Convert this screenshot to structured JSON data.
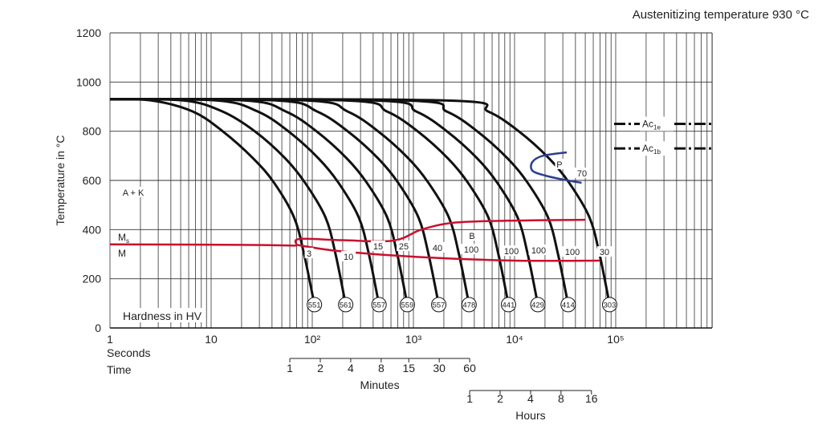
{
  "chart_data": {
    "type": "line",
    "title": "Austenitizing temperature 930 °C",
    "ylabel": "Temperature in °C",
    "xlabel_rows": [
      "Seconds",
      "Time"
    ],
    "x_scale": "log",
    "xlim": [
      1,
      900000
    ],
    "ylim": [
      0,
      1200
    ],
    "grid": true,
    "y_ticks": [
      0,
      200,
      400,
      600,
      800,
      1000,
      1200
    ],
    "x_ticks": [
      {
        "value": 1,
        "label": "1"
      },
      {
        "value": 10,
        "label": "10"
      },
      {
        "value": 100,
        "label": "10²"
      },
      {
        "value": 1000,
        "label": "10³"
      },
      {
        "value": 10000,
        "label": "10⁴"
      },
      {
        "value": 100000,
        "label": "10⁵"
      }
    ],
    "minutes_axis": {
      "label": "Minutes",
      "ticks": [
        1,
        2,
        4,
        8,
        15,
        30,
        60
      ]
    },
    "hours_axis": {
      "label": "Hours",
      "ticks": [
        1,
        2,
        4,
        8,
        16
      ]
    },
    "cooling_curves": [
      {
        "hardness": "551",
        "points": [
          [
            1,
            930
          ],
          [
            2.6,
            925
          ],
          [
            6.6,
            880
          ],
          [
            13,
            800
          ],
          [
            26,
            690
          ],
          [
            42,
            590
          ],
          [
            66,
            450
          ],
          [
            83,
            300
          ],
          [
            105,
            95
          ]
        ]
      },
      {
        "hardness": "561",
        "points": [
          [
            1,
            930
          ],
          [
            5.4,
            925
          ],
          [
            13,
            880
          ],
          [
            27,
            800
          ],
          [
            54,
            690
          ],
          [
            85,
            590
          ],
          [
            135,
            450
          ],
          [
            170,
            300
          ],
          [
            214,
            95
          ]
        ]
      },
      {
        "hardness": "557",
        "points": [
          [
            1,
            930
          ],
          [
            11.5,
            925
          ],
          [
            29,
            880
          ],
          [
            58,
            800
          ],
          [
            115,
            690
          ],
          [
            182,
            590
          ],
          [
            288,
            450
          ],
          [
            363,
            300
          ],
          [
            457,
            95
          ]
        ]
      },
      {
        "hardness": "559",
        "points": [
          [
            1,
            930
          ],
          [
            22,
            925
          ],
          [
            55,
            880
          ],
          [
            110,
            800
          ],
          [
            219,
            690
          ],
          [
            347,
            590
          ],
          [
            550,
            450
          ],
          [
            692,
            300
          ],
          [
            871,
            95
          ]
        ]
      },
      {
        "hardness": "557",
        "points": [
          [
            1,
            930
          ],
          [
            45,
            925
          ],
          [
            112,
            880
          ],
          [
            224,
            800
          ],
          [
            447,
            690
          ],
          [
            708,
            590
          ],
          [
            1120,
            450
          ],
          [
            1410,
            300
          ],
          [
            1780,
            95
          ]
        ]
      },
      {
        "hardness": "478",
        "points": [
          [
            1,
            930
          ],
          [
            89,
            925
          ],
          [
            224,
            880
          ],
          [
            447,
            800
          ],
          [
            891,
            690
          ],
          [
            1410,
            590
          ],
          [
            2240,
            450
          ],
          [
            2820,
            300
          ],
          [
            3550,
            95
          ]
        ]
      },
      {
        "hardness": "441",
        "points": [
          [
            1,
            930
          ],
          [
            219,
            925
          ],
          [
            550,
            880
          ],
          [
            1100,
            800
          ],
          [
            2190,
            690
          ],
          [
            3470,
            590
          ],
          [
            5500,
            450
          ],
          [
            6920,
            300
          ],
          [
            8710,
            95
          ]
        ]
      },
      {
        "hardness": "429",
        "points": [
          [
            1,
            930
          ],
          [
            427,
            925
          ],
          [
            1070,
            880
          ],
          [
            2140,
            800
          ],
          [
            4270,
            690
          ],
          [
            6760,
            590
          ],
          [
            10700,
            450
          ],
          [
            13500,
            300
          ],
          [
            17000,
            95
          ]
        ]
      },
      {
        "hardness": "414",
        "points": [
          [
            1,
            930
          ],
          [
            851,
            925
          ],
          [
            2140,
            880
          ],
          [
            4270,
            800
          ],
          [
            8510,
            690
          ],
          [
            13500,
            590
          ],
          [
            21400,
            450
          ],
          [
            26900,
            300
          ],
          [
            33900,
            95
          ]
        ]
      },
      {
        "hardness": "303",
        "points": [
          [
            1,
            930
          ],
          [
            2190,
            925
          ],
          [
            5500,
            880
          ],
          [
            11000,
            800
          ],
          [
            21900,
            690
          ],
          [
            34700,
            590
          ],
          [
            55000,
            450
          ],
          [
            69200,
            300
          ],
          [
            87100,
            95
          ]
        ]
      }
    ],
    "hardness_label_temperature": 95,
    "martensite_line": {
      "points": [
        [
          1,
          340
        ],
        [
          20,
          338
        ],
        [
          70,
          335
        ]
      ]
    },
    "bainite_start": {
      "points": [
        [
          70,
          338
        ],
        [
          75,
          362
        ],
        [
          200,
          357
        ],
        [
          630,
          355
        ],
        [
          1200,
          400
        ],
        [
          2500,
          428
        ],
        [
          8000,
          436
        ],
        [
          50000,
          440
        ]
      ]
    },
    "bainite_finish": {
      "points": [
        [
          70,
          338
        ],
        [
          180,
          313
        ],
        [
          1000,
          290
        ],
        [
          10000,
          274
        ],
        [
          70000,
          274
        ]
      ]
    },
    "pearlite": {
      "points": [
        [
          32800,
          714
        ],
        [
          19000,
          700
        ],
        [
          15000,
          675
        ],
        [
          15000,
          640
        ],
        [
          20000,
          620
        ],
        [
          29000,
          605
        ],
        [
          46000,
          590
        ]
      ]
    },
    "ac_lines": [
      {
        "label": "Ac",
        "sub": "1e",
        "temperature": 830
      },
      {
        "label": "Ac",
        "sub": "1b",
        "temperature": 730
      }
    ],
    "annotations": [
      {
        "text": "3",
        "t": 93,
        "T": 297
      },
      {
        "text": "10",
        "t": 228,
        "T": 284
      },
      {
        "text": "15",
        "t": 448,
        "T": 326
      },
      {
        "text": "25",
        "t": 804,
        "T": 326
      },
      {
        "text": "40",
        "t": 1730,
        "T": 320
      },
      {
        "text": "B",
        "t": 3800,
        "T": 368
      },
      {
        "text": "100",
        "t": 3730,
        "T": 313
      },
      {
        "text": "100",
        "t": 9300,
        "T": 306
      },
      {
        "text": "100",
        "t": 17300,
        "T": 310
      },
      {
        "text": "100",
        "t": 37300,
        "T": 303
      },
      {
        "text": "30",
        "t": 77400,
        "T": 303
      },
      {
        "text": "70",
        "t": 46400,
        "T": 623
      },
      {
        "text": "P",
        "t": 27800,
        "T": 659
      },
      {
        "text": "A + K",
        "t": 1.7,
        "T": 545
      }
    ],
    "ms_label": {
      "text": "M",
      "sub": "s"
    },
    "m_label": "M",
    "hardness_caption": "Hardness in HV",
    "colors": {
      "cooling": "#111111",
      "bainite": "#c8102e",
      "pearlite": "#2a3f8f",
      "grid": "#333333"
    }
  }
}
